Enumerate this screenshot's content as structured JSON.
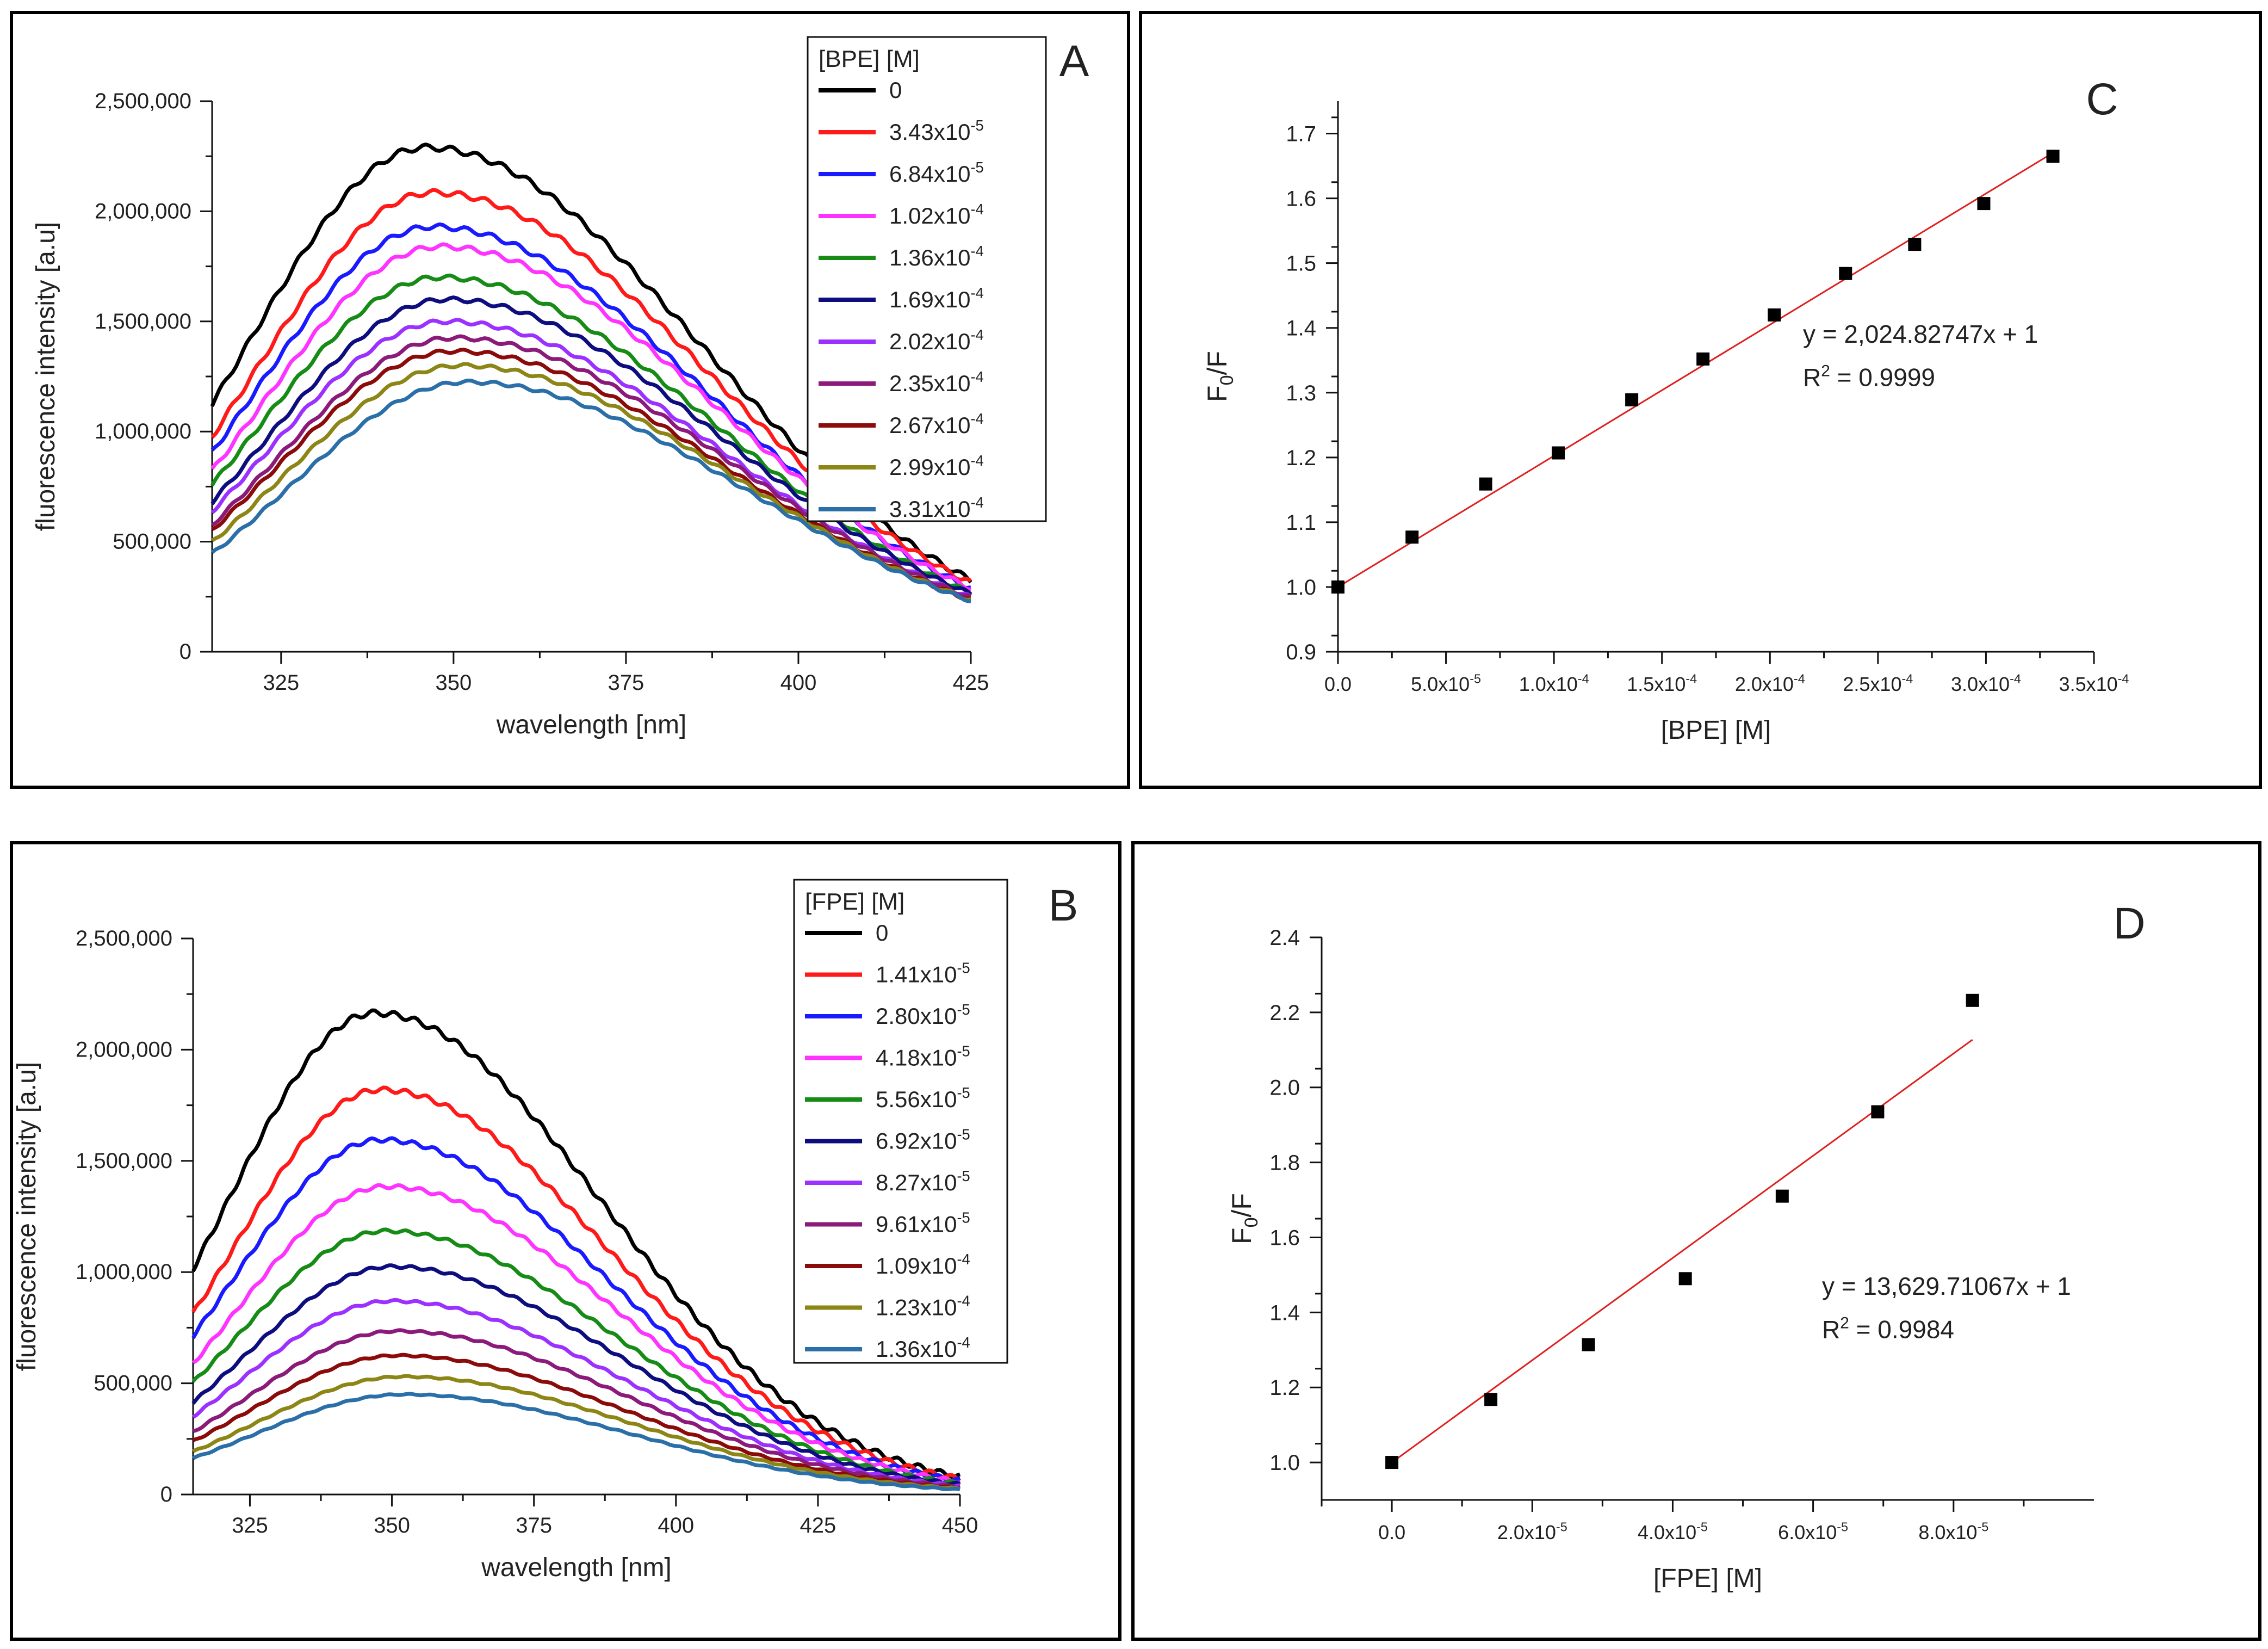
{
  "chart_data": [
    {
      "id": "A",
      "type": "line",
      "panel_label": "A",
      "xlabel": "wavelength [nm]",
      "ylabel": "fluorescence intensity [a.u]",
      "xlim": [
        315,
        425
      ],
      "ylim": [
        0,
        2500000
      ],
      "xticks": [
        "325",
        "350",
        "375",
        "400",
        "425"
      ],
      "yticks": [
        "0",
        "500,000",
        "1,000,000",
        "1,500,000",
        "2,000,000",
        "2,500,000"
      ],
      "legend_title": "[BPE] [M]",
      "legend_location": "top-right",
      "series": [
        {
          "name": "0",
          "color": "#000000",
          "peak": 2290000,
          "peak_x": 346
        },
        {
          "name": "3.43x10",
          "exp": "-5",
          "color": "#ff1a1a",
          "peak": 2085000,
          "peak_x": 347
        },
        {
          "name": "6.84x10",
          "exp": "-5",
          "color": "#1a1aff",
          "peak": 1930000,
          "peak_x": 347
        },
        {
          "name": "1.02x10",
          "exp": "-4",
          "color": "#ff33ff",
          "peak": 1840000,
          "peak_x": 348
        },
        {
          "name": "1.36x10",
          "exp": "-4",
          "color": "#168c16",
          "peak": 1700000,
          "peak_x": 348
        },
        {
          "name": "1.69x10",
          "exp": "-4",
          "color": "#0d0d80",
          "peak": 1600000,
          "peak_x": 349
        },
        {
          "name": "2.02x10",
          "exp": "-4",
          "color": "#9b30ff",
          "peak": 1500000,
          "peak_x": 349
        },
        {
          "name": "2.35x10",
          "exp": "-4",
          "color": "#8b1a7a",
          "peak": 1425000,
          "peak_x": 350
        },
        {
          "name": "2.67x10",
          "exp": "-4",
          "color": "#8b0a0a",
          "peak": 1365000,
          "peak_x": 350
        },
        {
          "name": "2.99x10",
          "exp": "-4",
          "color": "#8c8617",
          "peak": 1300000,
          "peak_x": 351
        },
        {
          "name": "3.31x10",
          "exp": "-4",
          "color": "#2a6fa8",
          "peak": 1225000,
          "peak_x": 352
        }
      ]
    },
    {
      "id": "B",
      "type": "line",
      "panel_label": "B",
      "xlabel": "wavelength [nm]",
      "ylabel": "fluorescence intensity [a.u]",
      "xlim": [
        315,
        450
      ],
      "ylim": [
        0,
        2500000
      ],
      "xticks": [
        "325",
        "350",
        "375",
        "400",
        "425",
        "450"
      ],
      "yticks": [
        "0",
        "500,000",
        "1,000,000",
        "1,500,000",
        "2,000,000",
        "2,500,000"
      ],
      "legend_title": "[FPE] [M]",
      "legend_location": "top-right",
      "series": [
        {
          "name": "0",
          "color": "#000000",
          "peak": 2165000,
          "peak_x": 347
        },
        {
          "name": "1.41x10",
          "exp": "-5",
          "color": "#ff1a1a",
          "peak": 1820000,
          "peak_x": 348
        },
        {
          "name": "2.80x10",
          "exp": "-5",
          "color": "#1a1aff",
          "peak": 1595000,
          "peak_x": 348
        },
        {
          "name": "4.18x10",
          "exp": "-5",
          "color": "#ff33ff",
          "peak": 1385000,
          "peak_x": 349
        },
        {
          "name": "5.56x10",
          "exp": "-5",
          "color": "#168c16",
          "peak": 1185000,
          "peak_x": 349
        },
        {
          "name": "6.92x10",
          "exp": "-5",
          "color": "#0d0d80",
          "peak": 1025000,
          "peak_x": 350
        },
        {
          "name": "8.27x10",
          "exp": "-5",
          "color": "#9b30ff",
          "peak": 870000,
          "peak_x": 350
        },
        {
          "name": "9.61x10",
          "exp": "-5",
          "color": "#8b1a7a",
          "peak": 735000,
          "peak_x": 351
        },
        {
          "name": "1.09x10",
          "exp": "-4",
          "color": "#8b0a0a",
          "peak": 625000,
          "peak_x": 351
        },
        {
          "name": "1.23x10",
          "exp": "-4",
          "color": "#8c8617",
          "peak": 530000,
          "peak_x": 352
        },
        {
          "name": "1.36x10",
          "exp": "-4",
          "color": "#2a6fa8",
          "peak": 450000,
          "peak_x": 352
        }
      ]
    },
    {
      "id": "C",
      "type": "scatter",
      "panel_label": "C",
      "xlabel": "[BPE] [M]",
      "ylabel_main": "F",
      "ylabel_sub": "0",
      "ylabel_tail": "/F",
      "xlim": [
        0,
        0.00035
      ],
      "ylim": [
        0.9,
        1.75
      ],
      "xticks": [
        {
          "value": 0,
          "label": "0.0",
          "exp": ""
        },
        {
          "value": 5e-05,
          "label": "5.0x10",
          "exp": "-5"
        },
        {
          "value": 0.0001,
          "label": "1.0x10",
          "exp": "-4"
        },
        {
          "value": 0.00015,
          "label": "1.5x10",
          "exp": "-4"
        },
        {
          "value": 0.0002,
          "label": "2.0x10",
          "exp": "-4"
        },
        {
          "value": 0.00025,
          "label": "2.5x10",
          "exp": "-4"
        },
        {
          "value": 0.0003,
          "label": "3.0x10",
          "exp": "-4"
        },
        {
          "value": 0.00035,
          "label": "3.5x10",
          "exp": "-4"
        }
      ],
      "yticks": [
        "0.9",
        "1.0",
        "1.1",
        "1.2",
        "1.3",
        "1.4",
        "1.5",
        "1.6",
        "1.7"
      ],
      "x": [
        0,
        3.43e-05,
        6.84e-05,
        0.000102,
        0.000136,
        0.000169,
        0.000202,
        0.000235,
        0.000267,
        0.000299,
        0.000331
      ],
      "y": [
        1.0,
        1.077,
        1.159,
        1.207,
        1.289,
        1.352,
        1.42,
        1.484,
        1.529,
        1.592,
        1.665
      ],
      "fit": {
        "slope": 2024.82747,
        "intercept": 1,
        "x_range": [
          0,
          0.000331
        ],
        "color": "#e02020"
      },
      "equation": "y = 2,024.82747x + 1",
      "r2_label": "R",
      "r2_exp": "2",
      "r2_value": " = 0.9999"
    },
    {
      "id": "D",
      "type": "scatter",
      "panel_label": "D",
      "xlabel": "[FPE] [M]",
      "ylabel_main": "F",
      "ylabel_sub": "0",
      "ylabel_tail": "/F",
      "xlim": [
        -1e-05,
        0.0001
      ],
      "ylim": [
        0.9,
        2.4
      ],
      "xticks": [
        {
          "value": 0,
          "label": "0.0",
          "exp": ""
        },
        {
          "value": 2e-05,
          "label": "2.0x10",
          "exp": "-5"
        },
        {
          "value": 4e-05,
          "label": "4.0x10",
          "exp": "-5"
        },
        {
          "value": 6e-05,
          "label": "6.0x10",
          "exp": "-5"
        },
        {
          "value": 8e-05,
          "label": "8.0x10",
          "exp": "-5"
        }
      ],
      "yticks": [
        "1.0",
        "1.2",
        "1.4",
        "1.6",
        "1.8",
        "2.0",
        "2.2",
        "2.4"
      ],
      "x": [
        0,
        1.41e-05,
        2.8e-05,
        4.18e-05,
        5.56e-05,
        6.92e-05,
        8.27e-05
      ],
      "y": [
        1.0,
        1.168,
        1.314,
        1.49,
        1.71,
        1.935,
        2.232
      ],
      "fit": {
        "slope": 13629.71067,
        "intercept": 1,
        "x_range": [
          0,
          8.27e-05
        ],
        "color": "#e02020"
      },
      "equation": "y = 13,629.71067x + 1",
      "r2_label": "R",
      "r2_exp": "2",
      "r2_value": " = 0.9984"
    }
  ]
}
